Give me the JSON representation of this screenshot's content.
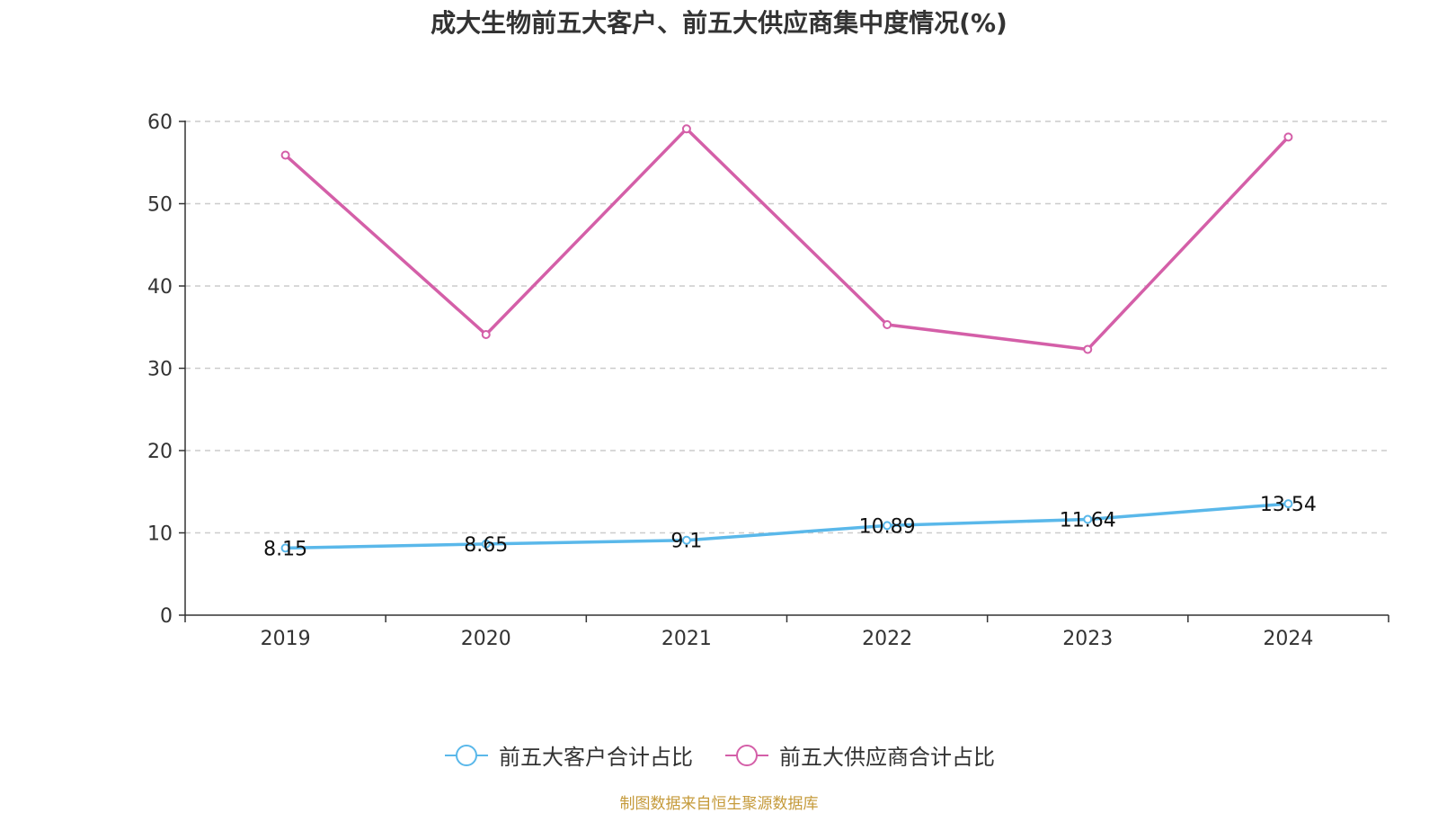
{
  "chart_data": {
    "type": "line",
    "title": "成大生物前五大客户、前五大供应商集中度情况(%)",
    "categories": [
      "2019",
      "2020",
      "2021",
      "2022",
      "2023",
      "2024"
    ],
    "ylim": [
      0,
      60
    ],
    "yticks": [
      0,
      10,
      20,
      30,
      40,
      50,
      60
    ],
    "grid": true,
    "legend_position": "bottom",
    "series": [
      {
        "name": "前五大客户合计占比",
        "color": "#5ab8ea",
        "values": [
          8.15,
          8.65,
          9.1,
          10.89,
          11.64,
          13.54
        ],
        "labels": [
          "8.15",
          "8.65",
          "9.1",
          "10.89",
          "11.64",
          "13.54"
        ]
      },
      {
        "name": "前五大供应商合计占比",
        "color": "#d45fa8",
        "values": [
          55.9,
          34.1,
          59.1,
          35.3,
          32.3,
          58.1
        ],
        "labels": []
      }
    ]
  },
  "source_note": "制图数据来自恒生聚源数据库"
}
